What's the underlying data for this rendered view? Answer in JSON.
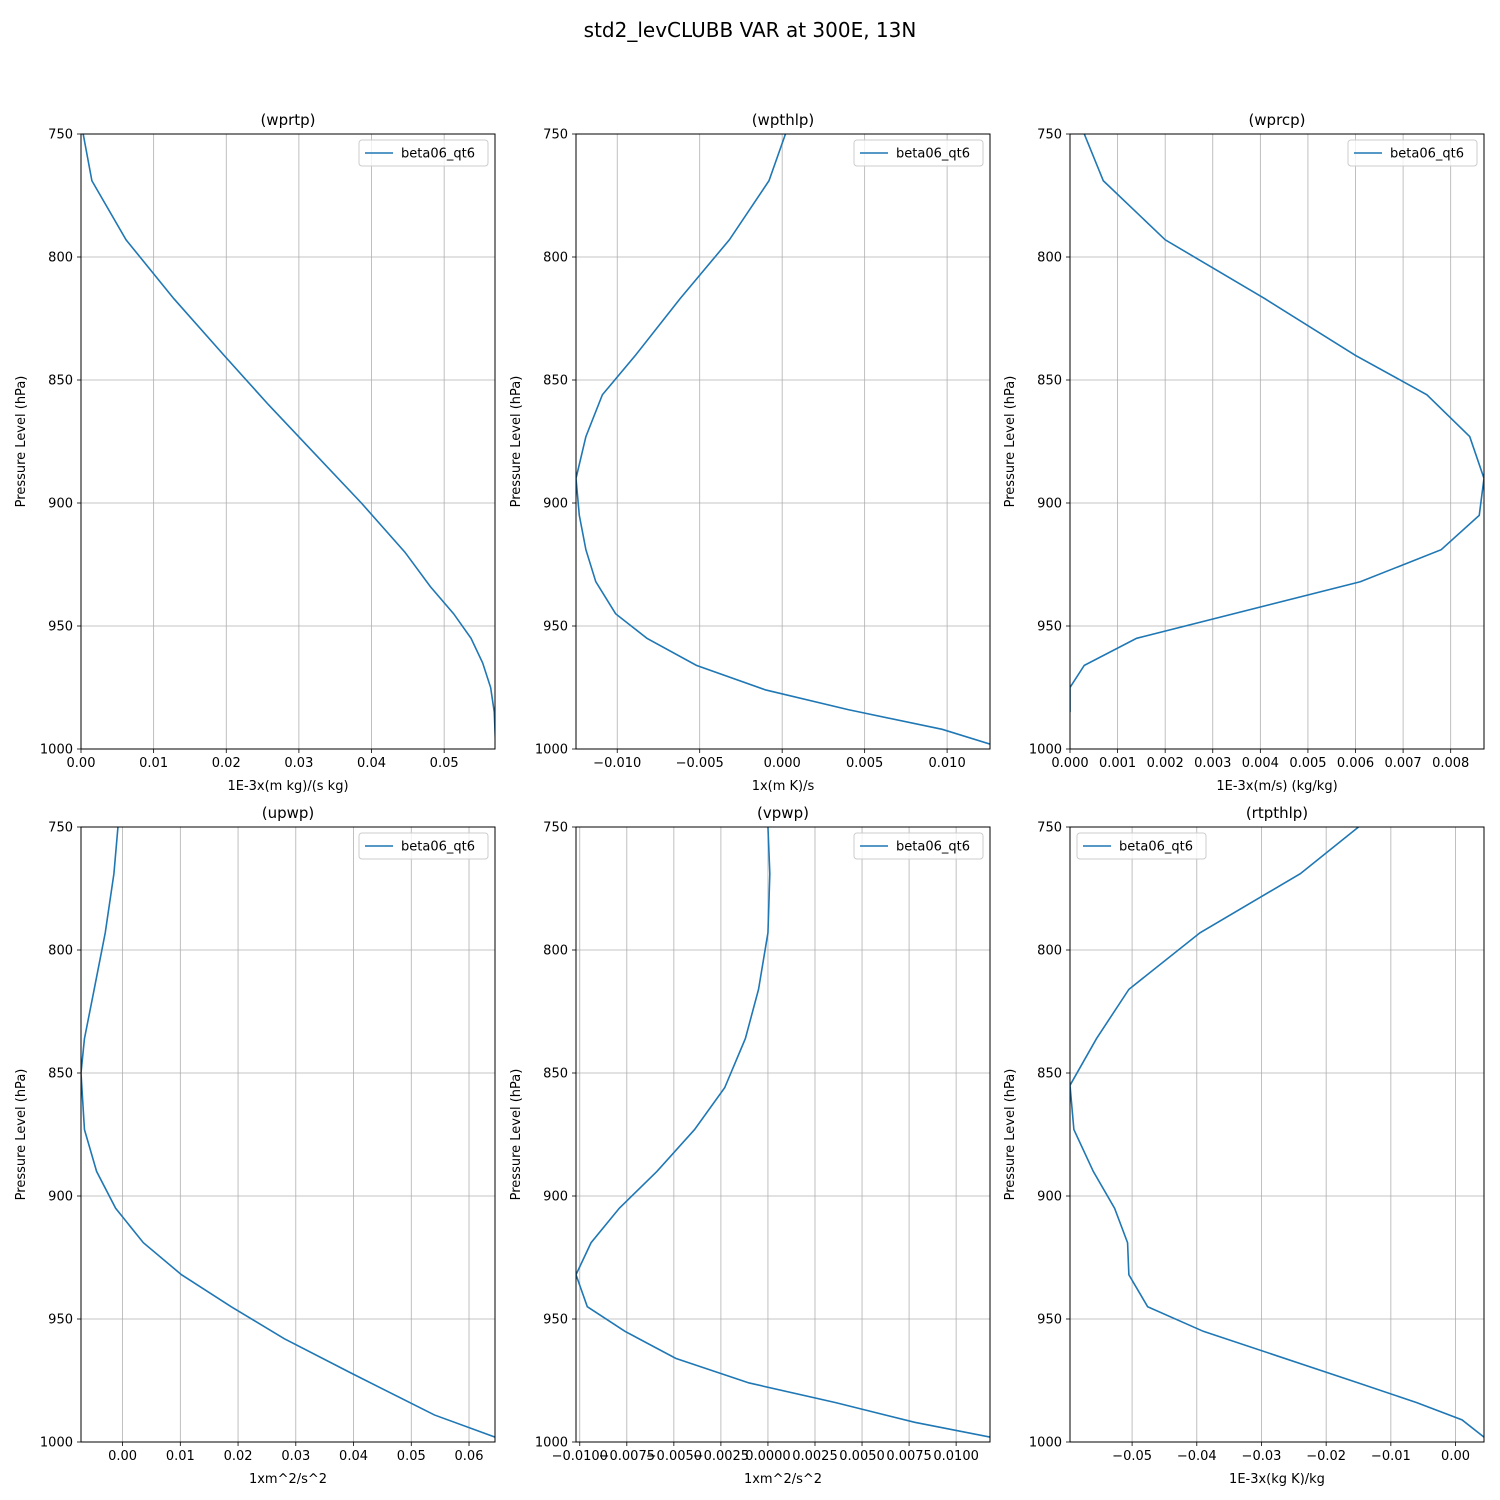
{
  "figure": {
    "title": "std2_levCLUBB VAR at 300E, 13N"
  },
  "chart_data": [
    {
      "type": "line",
      "title": "(wprtp)",
      "xlabel": "1E-3x(m kg)/(s kg)",
      "ylabel": "Pressure Level (hPa)",
      "xlim": [
        0.0,
        0.057
      ],
      "ylim": [
        1000,
        750
      ],
      "y_inverted": true,
      "xticks": [
        0.0,
        0.01,
        0.02,
        0.03,
        0.04,
        0.05
      ],
      "xtick_labels": [
        "0.00",
        "0.01",
        "0.02",
        "0.03",
        "0.04",
        "0.05"
      ],
      "yticks": [
        750,
        800,
        850,
        900,
        950,
        1000
      ],
      "ytick_labels": [
        "750",
        "800",
        "850",
        "900",
        "950",
        "1000"
      ],
      "grid": true,
      "legend_loc": "upper right",
      "series": [
        {
          "name": "beta06_qt6",
          "color": "#1f77b4",
          "x": [
            0.0003,
            0.0015,
            0.0062,
            0.0128,
            0.0197,
            0.0258,
            0.0322,
            0.0386,
            0.0446,
            0.0481,
            0.0513,
            0.0537,
            0.0553,
            0.0564,
            0.0569,
            0.0571
          ],
          "y": [
            750,
            769,
            793,
            817,
            840,
            860,
            880,
            900,
            920,
            934,
            945,
            955,
            965,
            975,
            985,
            1000
          ]
        }
      ]
    },
    {
      "type": "line",
      "title": "(wpthlp)",
      "xlabel": "1x(m K)/s",
      "ylabel": "Pressure Level (hPa)",
      "xlim": [
        -0.0125,
        0.0126
      ],
      "ylim": [
        1000,
        750
      ],
      "y_inverted": true,
      "xticks": [
        -0.01,
        -0.005,
        0.0,
        0.005,
        0.01
      ],
      "xtick_labels": [
        "−0.010",
        "−0.005",
        "0.000",
        "0.005",
        "0.010"
      ],
      "yticks": [
        750,
        800,
        850,
        900,
        950,
        1000
      ],
      "ytick_labels": [
        "750",
        "800",
        "850",
        "900",
        "950",
        "1000"
      ],
      "grid": true,
      "legend_loc": "upper right",
      "series": [
        {
          "name": "beta06_qt6",
          "color": "#1f77b4",
          "x": [
            0.0002,
            -0.0008,
            -0.0032,
            -0.0062,
            -0.0089,
            -0.0109,
            -0.0119,
            -0.0125,
            -0.0123,
            -0.0119,
            -0.0113,
            -0.0101,
            -0.0082,
            -0.0052,
            -0.001,
            0.004,
            0.0097,
            0.0126
          ],
          "y": [
            750,
            769,
            793,
            817,
            840,
            856,
            873,
            890,
            905,
            919,
            932,
            945,
            955,
            966,
            976,
            984,
            992,
            998
          ]
        }
      ]
    },
    {
      "type": "line",
      "title": "(wprcp)",
      "xlabel": "1E-3x(m/s) (kg/kg)",
      "ylabel": "Pressure Level (hPa)",
      "xlim": [
        0.0,
        0.0087
      ],
      "ylim": [
        1000,
        750
      ],
      "y_inverted": true,
      "xticks": [
        0.0,
        0.001,
        0.002,
        0.003,
        0.004,
        0.005,
        0.006,
        0.007,
        0.008
      ],
      "xtick_labels": [
        "0.000",
        "0.001",
        "0.002",
        "0.003",
        "0.004",
        "0.005",
        "0.006",
        "0.007",
        "0.008"
      ],
      "yticks": [
        750,
        800,
        850,
        900,
        950,
        1000
      ],
      "ytick_labels": [
        "750",
        "800",
        "850",
        "900",
        "950",
        "1000"
      ],
      "grid": true,
      "legend_loc": "upper right",
      "series": [
        {
          "name": "beta06_qt6",
          "color": "#1f77b4",
          "x": [
            0.0003,
            0.0007,
            0.002,
            0.0041,
            0.006,
            0.0075,
            0.0084,
            0.0087,
            0.0086,
            0.0078,
            0.0061,
            0.0014,
            0.0003,
            0.0,
            0.0
          ],
          "y": [
            750,
            769,
            793,
            817,
            840,
            856,
            873,
            890,
            905,
            919,
            932,
            955,
            966,
            975,
            985
          ]
        }
      ]
    },
    {
      "type": "line",
      "title": "(upwp)",
      "xlabel": "1xm^2/s^2",
      "ylabel": "Pressure Level (hPa)",
      "xlim": [
        -0.0072,
        0.0645
      ],
      "ylim": [
        1000,
        750
      ],
      "y_inverted": true,
      "xticks": [
        0.0,
        0.01,
        0.02,
        0.03,
        0.04,
        0.05,
        0.06
      ],
      "xtick_labels": [
        "0.00",
        "0.01",
        "0.02",
        "0.03",
        "0.04",
        "0.05",
        "0.06"
      ],
      "yticks": [
        750,
        800,
        850,
        900,
        950,
        1000
      ],
      "ytick_labels": [
        "750",
        "800",
        "850",
        "900",
        "950",
        "1000"
      ],
      "grid": true,
      "legend_loc": "upper right",
      "series": [
        {
          "name": "beta06_qt6",
          "color": "#1f77b4",
          "x": [
            -0.0008,
            -0.0015,
            -0.003,
            -0.005,
            -0.0066,
            -0.0072,
            -0.0066,
            -0.0045,
            -0.0012,
            0.0036,
            0.0102,
            0.0188,
            0.028,
            0.0396,
            0.054,
            0.0645
          ],
          "y": [
            750,
            769,
            793,
            817,
            836,
            850,
            873,
            890,
            905,
            919,
            932,
            945,
            958,
            972,
            989,
            998
          ]
        }
      ]
    },
    {
      "type": "line",
      "title": "(vpwp)",
      "xlabel": "1xm^2/s^2",
      "ylabel": "Pressure Level (hPa)",
      "xlim": [
        -0.0102,
        0.0118
      ],
      "ylim": [
        1000,
        750
      ],
      "y_inverted": true,
      "xticks": [
        -0.01,
        -0.0075,
        -0.005,
        -0.0025,
        0.0,
        0.0025,
        0.005,
        0.0075,
        0.01
      ],
      "xtick_labels": [
        "−0.0100",
        "−0.0075",
        "−0.0050",
        "−0.0025",
        "0.0000",
        "0.0025",
        "0.0050",
        "0.0075",
        "0.0100"
      ],
      "yticks": [
        750,
        800,
        850,
        900,
        950,
        1000
      ],
      "ytick_labels": [
        "750",
        "800",
        "850",
        "900",
        "950",
        "1000"
      ],
      "grid": true,
      "legend_loc": "upper right",
      "series": [
        {
          "name": "beta06_qt6",
          "color": "#1f77b4",
          "x": [
            0.0,
            0.0001,
            0.0,
            -0.0005,
            -0.0012,
            -0.0023,
            -0.0039,
            -0.0059,
            -0.0079,
            -0.0094,
            -0.0102,
            -0.0096,
            -0.0076,
            -0.0049,
            -0.001,
            0.0036,
            0.0078,
            0.0118
          ],
          "y": [
            750,
            769,
            793,
            816,
            836,
            856,
            873,
            890,
            905,
            919,
            932,
            945,
            955,
            966,
            976,
            984,
            992,
            998
          ]
        }
      ]
    },
    {
      "type": "line",
      "title": "(rtpthlp)",
      "xlabel": "1E-3x(kg K)/kg",
      "ylabel": "Pressure Level (hPa)",
      "xlim": [
        -0.0596,
        0.0044
      ],
      "ylim": [
        1000,
        750
      ],
      "y_inverted": true,
      "xticks": [
        -0.05,
        -0.04,
        -0.03,
        -0.02,
        -0.01,
        0.0
      ],
      "xtick_labels": [
        "−0.05",
        "−0.04",
        "−0.03",
        "−0.02",
        "−0.01",
        "0.00"
      ],
      "yticks": [
        750,
        800,
        850,
        900,
        950,
        1000
      ],
      "ytick_labels": [
        "750",
        "800",
        "850",
        "900",
        "950",
        "1000"
      ],
      "grid": true,
      "legend_loc": "upper left",
      "series": [
        {
          "name": "beta06_qt6",
          "color": "#1f77b4",
          "x": [
            -0.015,
            -0.024,
            -0.0395,
            -0.0505,
            -0.0555,
            -0.0596,
            -0.059,
            -0.056,
            -0.0527,
            -0.0507,
            -0.0505,
            -0.0476,
            -0.039,
            -0.015,
            -0.006,
            0.001,
            0.0044
          ],
          "y": [
            750,
            769,
            793,
            816,
            836,
            855,
            873,
            890,
            905,
            919,
            932,
            945,
            955,
            976,
            984,
            991,
            998
          ]
        }
      ]
    }
  ]
}
